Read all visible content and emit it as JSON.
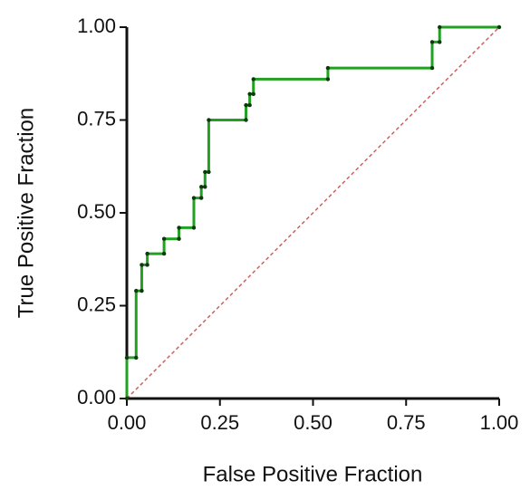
{
  "chart_data": {
    "type": "line",
    "x_label": "False Positive Fraction",
    "y_label": "True Positive Fraction",
    "xlim": [
      0,
      1
    ],
    "ylim": [
      0,
      1
    ],
    "xticks": [
      {
        "value": 0,
        "label": "0.00"
      },
      {
        "value": 0.25,
        "label": "0.25"
      },
      {
        "value": 0.5,
        "label": "0.50"
      },
      {
        "value": 0.75,
        "label": "0.75"
      },
      {
        "value": 1,
        "label": "1.00"
      }
    ],
    "yticks": [
      {
        "value": 0,
        "label": "0.00"
      },
      {
        "value": 0.25,
        "label": "0.25"
      },
      {
        "value": 0.5,
        "label": "0.50"
      },
      {
        "value": 0.75,
        "label": "0.75"
      },
      {
        "value": 1,
        "label": "1.00"
      }
    ],
    "x": [
      0,
      0,
      0.025,
      0.025,
      0.04,
      0.04,
      0.055,
      0.055,
      0.1,
      0.1,
      0.14,
      0.14,
      0.18,
      0.18,
      0.2,
      0.2,
      0.21,
      0.21,
      0.22,
      0.22,
      0.32,
      0.32,
      0.33,
      0.33,
      0.34,
      0.34,
      0.54,
      0.54,
      0.82,
      0.82,
      0.84,
      0.84,
      1
    ],
    "series": [
      {
        "color": "#22a022",
        "values": [
          0,
          0.11,
          0.11,
          0.29,
          0.29,
          0.36,
          0.36,
          0.39,
          0.39,
          0.43,
          0.43,
          0.46,
          0.46,
          0.54,
          0.54,
          0.57,
          0.57,
          0.61,
          0.61,
          0.75,
          0.75,
          0.79,
          0.79,
          0.82,
          0.82,
          0.86,
          0.86,
          0.89,
          0.89,
          0.96,
          0.96,
          1,
          1
        ]
      }
    ],
    "reference_color": "#d06060"
  }
}
